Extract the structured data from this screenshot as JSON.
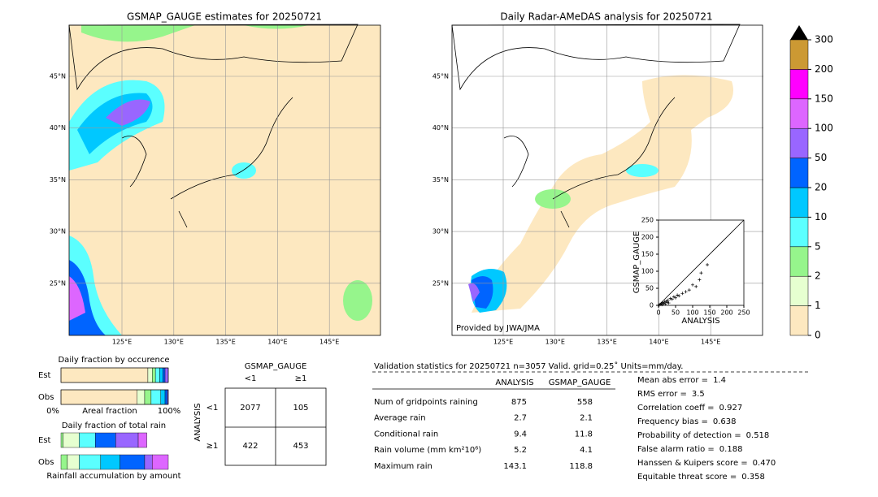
{
  "left_map": {
    "title": "GSMAP_GAUGE estimates for 20250721",
    "lat_labels": [
      "45°N",
      "40°N",
      "35°N",
      "30°N",
      "25°N"
    ],
    "lon_labels": [
      "125°E",
      "130°E",
      "135°E",
      "140°E",
      "145°E"
    ]
  },
  "right_map": {
    "title": "Daily Radar-AMeDAS analysis for 20250721",
    "lat_labels": [
      "45°N",
      "40°N",
      "35°N",
      "30°N",
      "25°N"
    ],
    "lon_labels": [
      "125°E",
      "130°E",
      "135°E",
      "140°E",
      "145°E"
    ],
    "credit": "Provided by JWA/JMA"
  },
  "colorbar": {
    "levels": [
      0,
      1,
      2,
      5,
      10,
      20,
      50,
      100,
      150,
      200,
      300
    ],
    "colors": [
      "#fde8c0",
      "#e6ffd0",
      "#96f58c",
      "#5bffff",
      "#00c8ff",
      "#0064ff",
      "#9966ff",
      "#dd66ff",
      "#ff00ff",
      "#cc9933"
    ]
  },
  "scatter": {
    "xlabel": "ANALYSIS",
    "ylabel": "GSMAP_GAUGE",
    "xlim": [
      0,
      250
    ],
    "ylim": [
      0,
      250
    ],
    "xticks": [
      0,
      50,
      100,
      150,
      200,
      250
    ],
    "yticks": [
      0,
      50,
      100,
      150,
      200,
      250
    ],
    "x": [
      2,
      5,
      8,
      10,
      12,
      15,
      18,
      20,
      22,
      25,
      28,
      30,
      35,
      40,
      45,
      50,
      55,
      60,
      70,
      80,
      90,
      100,
      110,
      120,
      125,
      143
    ],
    "y": [
      1,
      3,
      5,
      2,
      8,
      6,
      10,
      4,
      12,
      9,
      15,
      7,
      20,
      18,
      25,
      22,
      30,
      28,
      35,
      40,
      45,
      60,
      55,
      75,
      95,
      119
    ]
  },
  "occurrence": {
    "title": "Daily fraction by occurence",
    "xlabel": "Areal fraction",
    "xtick_labels": [
      "0%",
      "100%"
    ],
    "rows": [
      {
        "label": "Est",
        "values": [
          0.81,
          0.04,
          0.03,
          0.04,
          0.03,
          0.02,
          0.03
        ],
        "colors": [
          "#fde8c0",
          "#e6ffd0",
          "#96f58c",
          "#5bffff",
          "#00c8ff",
          "#0064ff",
          "#9966ff"
        ]
      },
      {
        "label": "Obs",
        "values": [
          0.71,
          0.07,
          0.06,
          0.09,
          0.04,
          0.02,
          0.01
        ],
        "colors": [
          "#fde8c0",
          "#e6ffd0",
          "#96f58c",
          "#5bffff",
          "#00c8ff",
          "#0064ff",
          "#9966ff"
        ]
      }
    ]
  },
  "amount": {
    "title": "Daily fraction of total rain",
    "xlabel": "Rainfall accumulation by amount",
    "rows": [
      {
        "label": "Est",
        "values": [
          0.02,
          0.15,
          0.15,
          0.19,
          0.21,
          0.08
        ],
        "colors": [
          "#96f58c",
          "#e6ffd0",
          "#5bffff",
          "#0064ff",
          "#9966ff",
          "#dd66ff"
        ]
      },
      {
        "label": "Obs",
        "values": [
          0.06,
          0.11,
          0.2,
          0.18,
          0.23,
          0.07,
          0.15
        ],
        "colors": [
          "#96f58c",
          "#e6ffd0",
          "#5bffff",
          "#00c8ff",
          "#0064ff",
          "#9966ff",
          "#dd66ff"
        ]
      }
    ]
  },
  "contingency": {
    "col_header": "GSMAP_GAUGE",
    "col_labels": [
      "<1",
      "≥1"
    ],
    "row_header": "ANALYSIS",
    "row_labels": [
      "<1",
      "≥1"
    ],
    "cells": [
      [
        2077,
        105
      ],
      [
        422,
        453
      ]
    ]
  },
  "stats": {
    "header": "Validation statistics for 20250721  n=3057 Valid. grid=0.25˚ Units=mm/day.",
    "columns": [
      "ANALYSIS",
      "GSMAP_GAUGE"
    ],
    "rows": [
      {
        "label": "Num of gridpoints raining",
        "values": [
          875,
          558
        ]
      },
      {
        "label": "Average rain",
        "values": [
          2.7,
          2.1
        ]
      },
      {
        "label": "Conditional rain",
        "values": [
          9.4,
          11.8
        ]
      },
      {
        "label": "Rain volume (mm km²10⁶)",
        "values": [
          5.2,
          4.1
        ]
      },
      {
        "label": "Maximum rain",
        "values": [
          143.1,
          118.8
        ]
      }
    ],
    "scores": [
      {
        "label": "Mean abs error =",
        "value": 1.4
      },
      {
        "label": "RMS error =",
        "value": 3.5
      },
      {
        "label": "Correlation coeff =",
        "value": 0.927
      },
      {
        "label": "Frequency bias =",
        "value": 0.638
      },
      {
        "label": "Probability of detection =",
        "value": 0.518
      },
      {
        "label": "False alarm ratio =",
        "value": 0.188
      },
      {
        "label": "Hanssen & Kuipers score =",
        "value": {
          "value": 0.47,
          "label": "0.470"
        }
      },
      {
        "label": "Equitable threat score =",
        "value": 0.358
      }
    ]
  }
}
